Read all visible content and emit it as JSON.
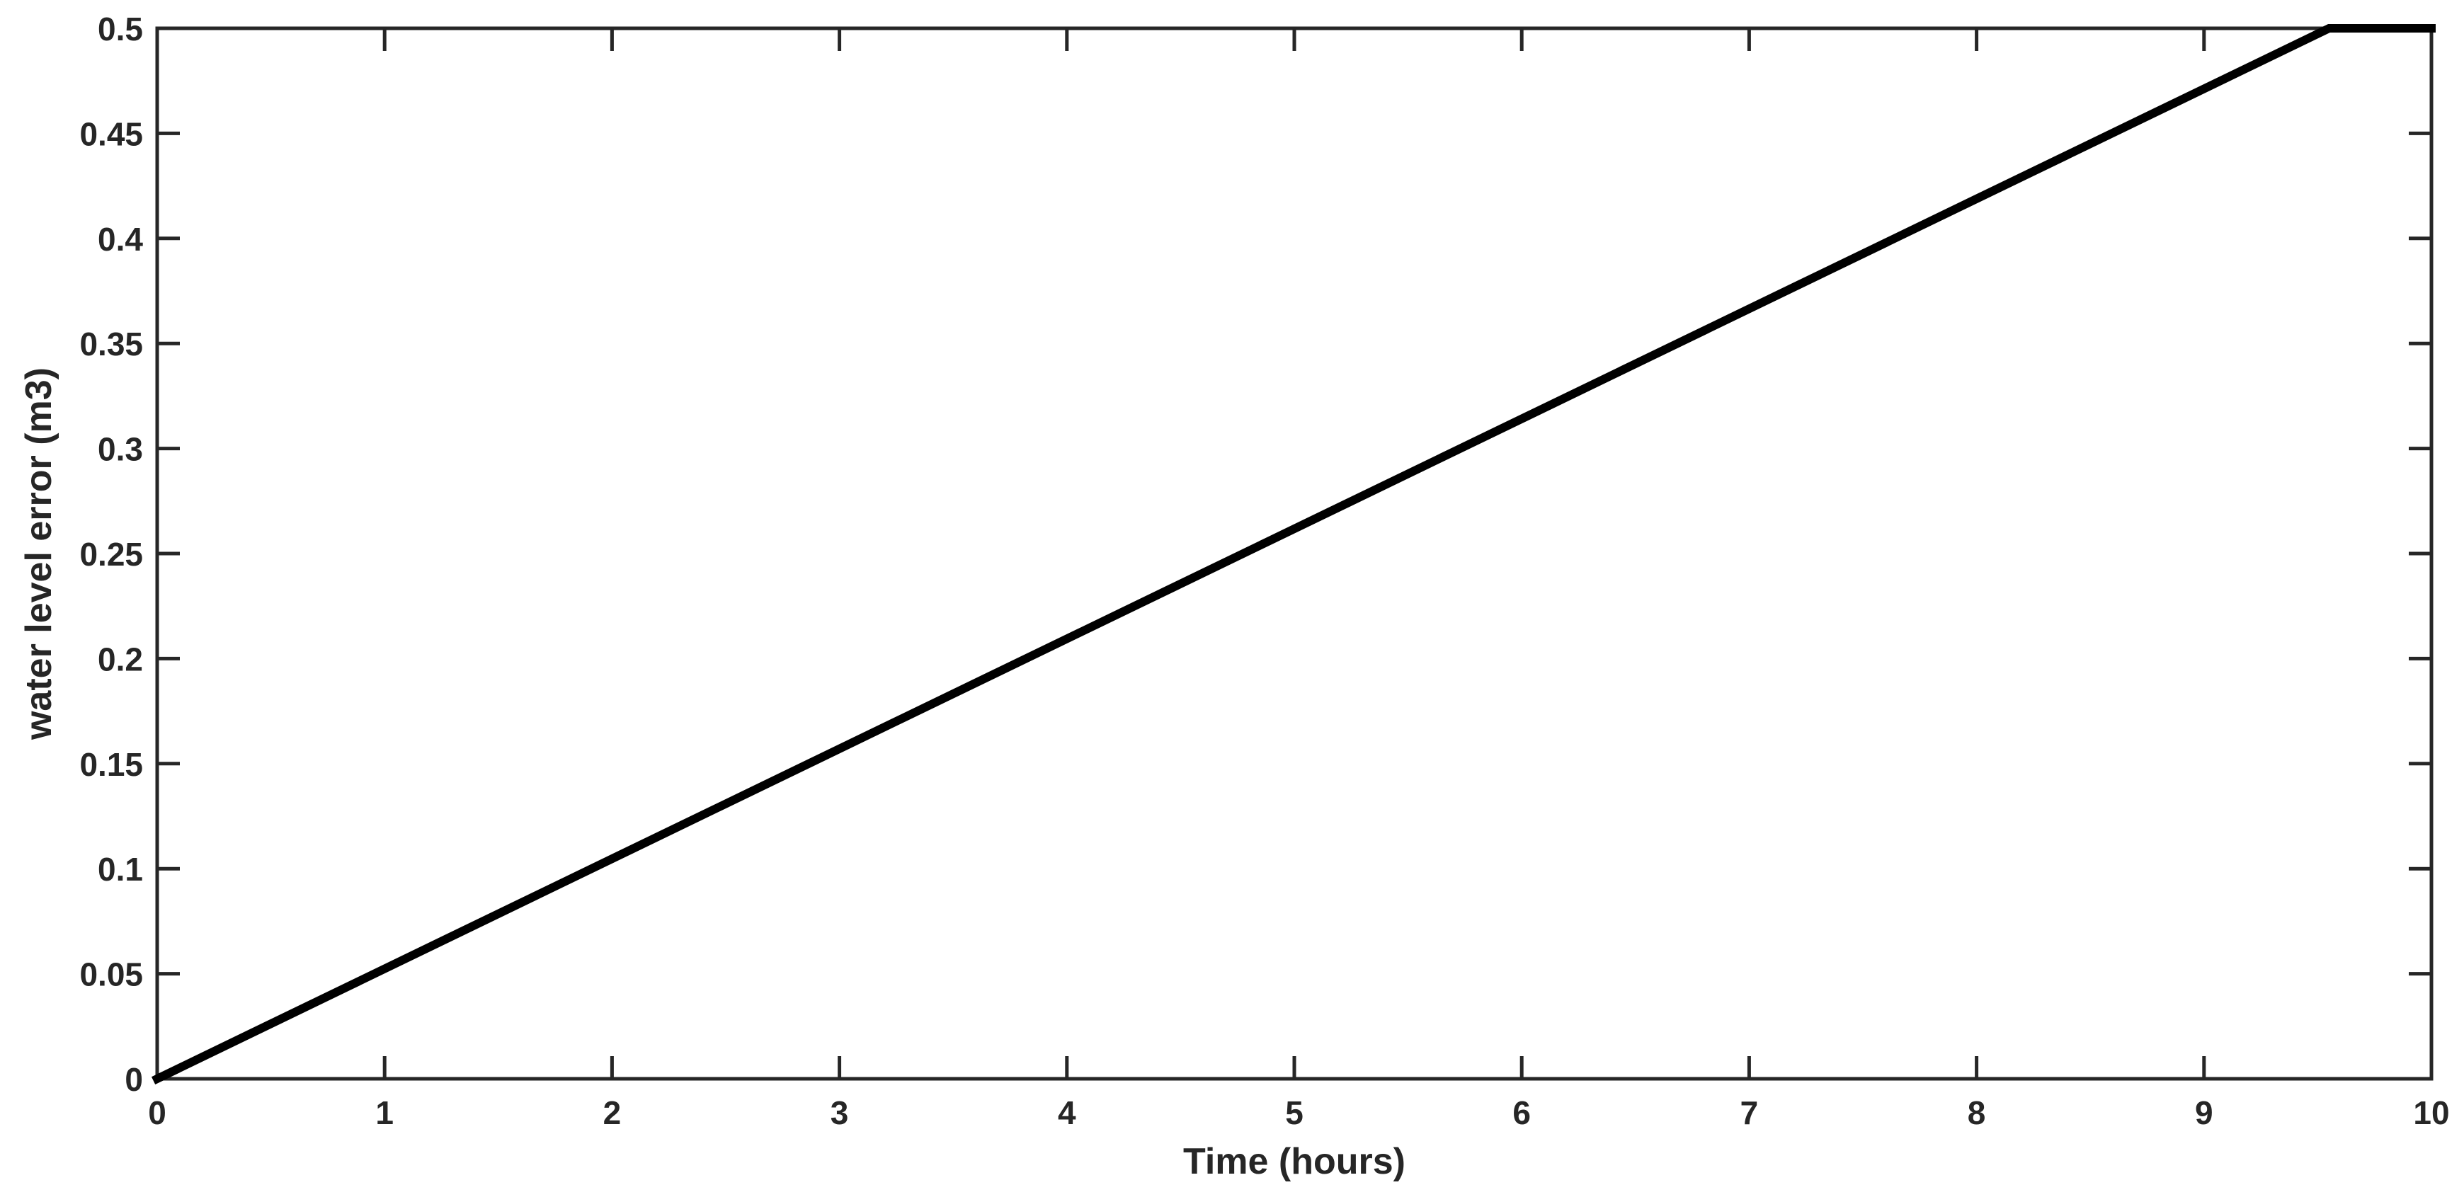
{
  "figure": {
    "background": "#ffffff"
  },
  "chart_data": {
    "type": "line",
    "title": "",
    "xlabel": "Time (hours)",
    "ylabel": "water level error (m3)",
    "xlim": [
      0,
      10
    ],
    "ylim": [
      0,
      0.5
    ],
    "grid": false,
    "legend": "none",
    "box": true,
    "ticks_mirrored_all_sides": true,
    "tick_direction": "in",
    "axis_color": "#262626",
    "tick_label_color": "#262626",
    "x_ticks": {
      "values": [
        0,
        1,
        2,
        3,
        4,
        5,
        6,
        7,
        8,
        9,
        10
      ],
      "labels": [
        "0",
        "1",
        "2",
        "3",
        "4",
        "5",
        "6",
        "7",
        "8",
        "9",
        "10"
      ]
    },
    "y_ticks": {
      "values": [
        0,
        0.05,
        0.1,
        0.15,
        0.2,
        0.25,
        0.3,
        0.35,
        0.4,
        0.45,
        0.5
      ],
      "labels": [
        "0",
        "0.05",
        "0.1",
        "0.15",
        "0.2",
        "0.25",
        "0.3",
        "0.35",
        "0.4",
        "0.45",
        "0.5"
      ]
    },
    "series": [
      {
        "name": "water level error",
        "color": "#000000",
        "line_width": 12,
        "x": [
          0,
          9.55,
          10
        ],
        "y": [
          0,
          0.5,
          0.5
        ],
        "description": "rises linearly from (0,0) at slope ~0.052 m3/hour until it saturates at 0.5 near t=9.55, then stays constant at 0.5 through t=10"
      }
    ]
  }
}
